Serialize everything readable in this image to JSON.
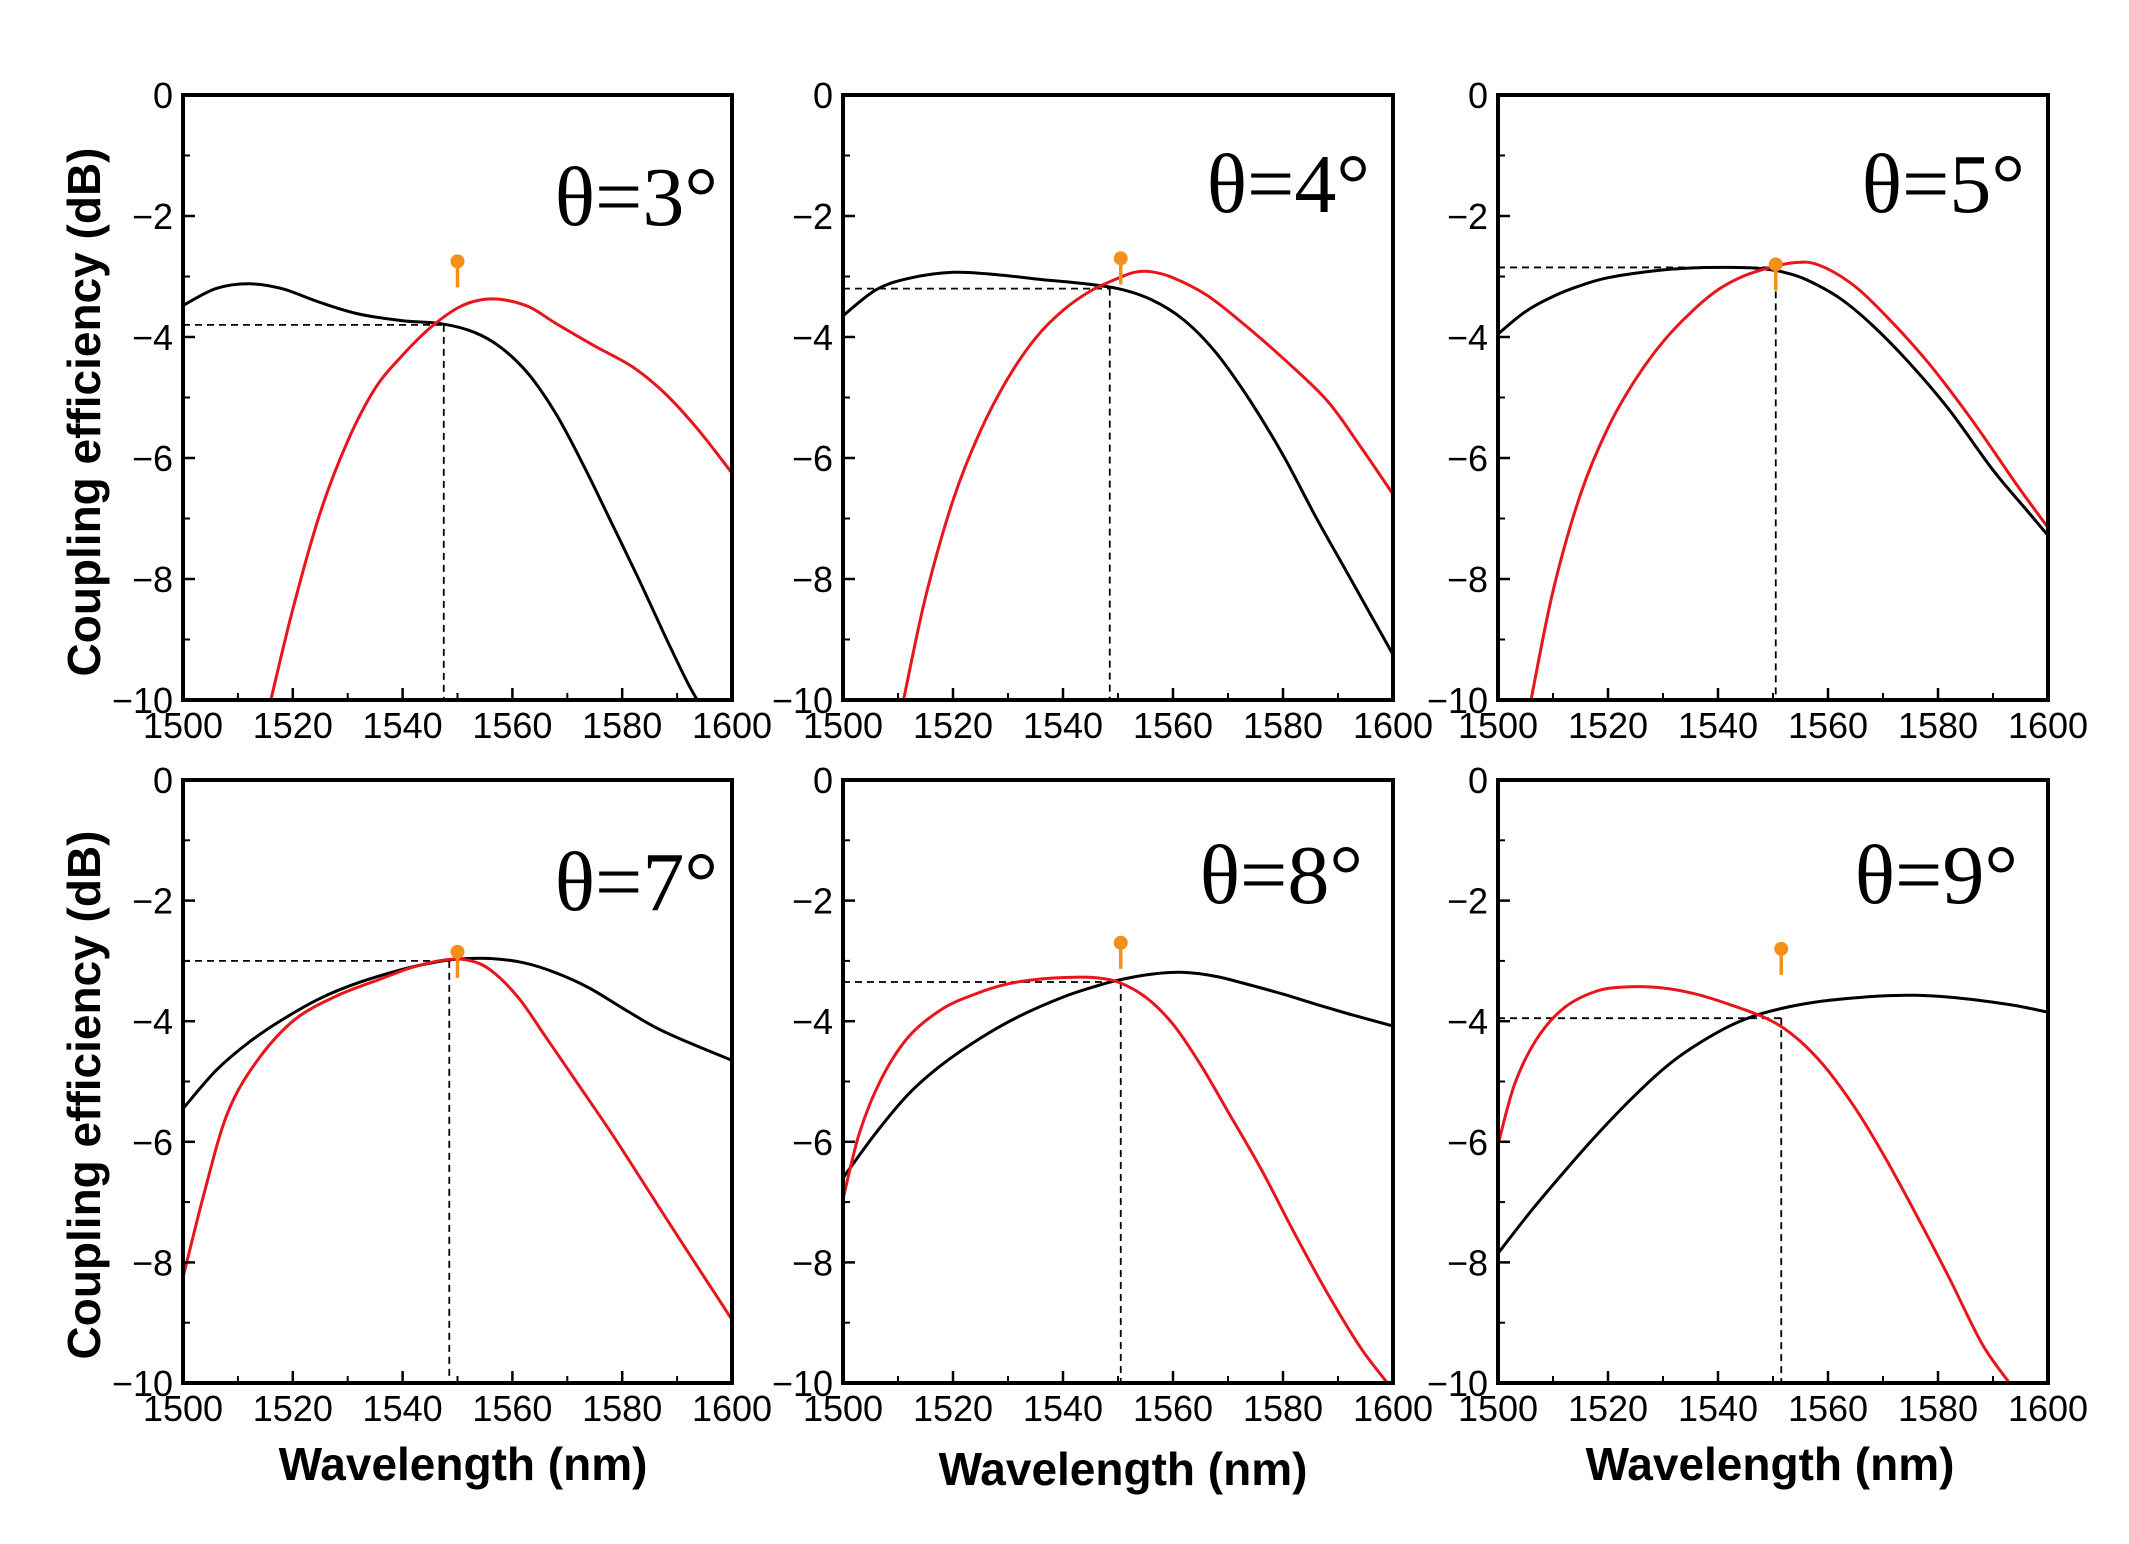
{
  "figure": {
    "ylabel_top": "Coupling efficiency (dB)",
    "ylabel_bottom": "Coupling efficiency (dB)",
    "xlabel_col1": "Wavelength (nm)",
    "xlabel_col2": "Wavelength (nm)",
    "xlabel_col3": "Wavelength (nm)"
  },
  "colors": {
    "curve_a": "#000000",
    "curve_b": "#e8151b",
    "marker": "#f39019",
    "guide": "#000000"
  },
  "chart_data": [
    {
      "type": "line",
      "label": "θ=3°",
      "xlim": [
        1500,
        1600
      ],
      "ylim": [
        -10,
        0
      ],
      "xticks": [
        1500,
        1520,
        1540,
        1560,
        1580,
        1600
      ],
      "xtick_labels": [
        "1500",
        "1520",
        "1540",
        "1560",
        "1580",
        "1600"
      ],
      "yticks": [
        0,
        -2,
        -4,
        -6,
        -8,
        -10
      ],
      "ytick_labels": [
        "0",
        "−2",
        "−4",
        "−6",
        "−8",
        "−10"
      ],
      "series": [
        {
          "name": "black",
          "x": [
            1500,
            1506,
            1512,
            1518,
            1525,
            1532,
            1540,
            1547,
            1553,
            1558,
            1563,
            1568,
            1573,
            1578,
            1583,
            1588,
            1592,
            1595
          ],
          "y": [
            -3.48,
            -3.2,
            -3.12,
            -3.2,
            -3.43,
            -3.62,
            -3.73,
            -3.78,
            -3.92,
            -4.18,
            -4.62,
            -5.28,
            -6.13,
            -7.06,
            -8.0,
            -8.98,
            -9.73,
            -10.2
          ]
        },
        {
          "name": "red",
          "x": [
            1516,
            1520,
            1525,
            1530,
            1535,
            1540,
            1545,
            1550,
            1554,
            1558,
            1563,
            1568,
            1575,
            1582,
            1588,
            1594,
            1600
          ],
          "y": [
            -10.0,
            -8.5,
            -6.9,
            -5.72,
            -4.85,
            -4.3,
            -3.85,
            -3.52,
            -3.39,
            -3.38,
            -3.5,
            -3.78,
            -4.15,
            -4.5,
            -4.95,
            -5.55,
            -6.25
          ]
        }
      ],
      "marker": {
        "x": 1550,
        "y": -2.75
      },
      "guide": {
        "x": 1547.5,
        "y": -3.8
      }
    },
    {
      "type": "line",
      "label": "θ=4°",
      "xlim": [
        1500,
        1600
      ],
      "ylim": [
        -10,
        0
      ],
      "xticks": [
        1500,
        1520,
        1540,
        1560,
        1580,
        1600
      ],
      "xtick_labels": [
        "1500",
        "1520",
        "1540",
        "1560",
        "1580",
        "1600"
      ],
      "yticks": [
        0,
        -2,
        -4,
        -6,
        -8,
        -10
      ],
      "ytick_labels": [
        "0",
        "−2",
        "−4",
        "−6",
        "−8",
        "−10"
      ],
      "series": [
        {
          "name": "black",
          "x": [
            1500,
            1506,
            1512,
            1520,
            1528,
            1536,
            1544,
            1550,
            1556,
            1562,
            1568,
            1574,
            1580,
            1586,
            1592,
            1600
          ],
          "y": [
            -3.65,
            -3.22,
            -3.03,
            -2.93,
            -2.97,
            -3.05,
            -3.12,
            -3.2,
            -3.38,
            -3.72,
            -4.28,
            -5.05,
            -5.95,
            -6.98,
            -7.95,
            -9.25
          ]
        },
        {
          "name": "red",
          "x": [
            1511,
            1515,
            1520,
            1525,
            1530,
            1535,
            1540,
            1545,
            1550,
            1553,
            1556,
            1560,
            1566,
            1572,
            1580,
            1588,
            1594,
            1600
          ],
          "y": [
            -10.0,
            -8.3,
            -6.7,
            -5.55,
            -4.68,
            -4.02,
            -3.56,
            -3.24,
            -3.03,
            -2.93,
            -2.92,
            -3.02,
            -3.3,
            -3.72,
            -4.35,
            -5.05,
            -5.8,
            -6.6
          ]
        }
      ],
      "marker": {
        "x": 1550.5,
        "y": -2.7
      },
      "guide": {
        "x": 1548.5,
        "y": -3.2
      }
    },
    {
      "type": "line",
      "label": "θ=5°",
      "xlim": [
        1500,
        1600
      ],
      "ylim": [
        -10,
        0
      ],
      "xticks": [
        1500,
        1520,
        1540,
        1560,
        1580,
        1600
      ],
      "xtick_labels": [
        "1500",
        "1520",
        "1540",
        "1560",
        "1580",
        "1600"
      ],
      "yticks": [
        0,
        -2,
        -4,
        -6,
        -8,
        -10
      ],
      "ytick_labels": [
        "0",
        "−2",
        "−4",
        "−6",
        "−8",
        "−10"
      ],
      "series": [
        {
          "name": "black",
          "x": [
            1500,
            1505,
            1510,
            1515,
            1520,
            1528,
            1535,
            1542,
            1548,
            1552,
            1556,
            1562,
            1568,
            1575,
            1582,
            1590,
            1596,
            1600
          ],
          "y": [
            -3.95,
            -3.58,
            -3.33,
            -3.15,
            -3.02,
            -2.91,
            -2.86,
            -2.85,
            -2.87,
            -2.93,
            -3.05,
            -3.35,
            -3.8,
            -4.45,
            -5.2,
            -6.2,
            -6.85,
            -7.28
          ]
        },
        {
          "name": "red",
          "x": [
            1506,
            1510,
            1515,
            1520,
            1525,
            1530,
            1535,
            1540,
            1545,
            1550,
            1554,
            1558,
            1564,
            1570,
            1578,
            1586,
            1594,
            1600
          ],
          "y": [
            -10.0,
            -8.2,
            -6.6,
            -5.5,
            -4.7,
            -4.08,
            -3.6,
            -3.22,
            -2.98,
            -2.84,
            -2.77,
            -2.8,
            -3.1,
            -3.6,
            -4.4,
            -5.35,
            -6.4,
            -7.15
          ]
        }
      ],
      "marker": {
        "x": 1550.5,
        "y": -2.8
      },
      "guide": {
        "x": 1550.5,
        "y": -2.85
      }
    },
    {
      "type": "line",
      "label": "θ=7°",
      "xlim": [
        1500,
        1600
      ],
      "ylim": [
        -10,
        0
      ],
      "xticks": [
        1500,
        1520,
        1540,
        1560,
        1580,
        1600
      ],
      "xtick_labels": [
        "1500",
        "1520",
        "1540",
        "1560",
        "1580",
        "1600"
      ],
      "yticks": [
        0,
        -2,
        -4,
        -6,
        -8,
        -10
      ],
      "ytick_labels": [
        "0",
        "−2",
        "−4",
        "−6",
        "−8",
        "−10"
      ],
      "series": [
        {
          "name": "black",
          "x": [
            1500,
            1506,
            1512,
            1518,
            1525,
            1532,
            1540,
            1546,
            1550,
            1556,
            1562,
            1568,
            1574,
            1580,
            1586,
            1592,
            1600
          ],
          "y": [
            -5.45,
            -4.82,
            -4.35,
            -3.98,
            -3.62,
            -3.36,
            -3.14,
            -3.02,
            -2.97,
            -2.96,
            -3.03,
            -3.2,
            -3.45,
            -3.78,
            -4.1,
            -4.35,
            -4.65
          ]
        },
        {
          "name": "red",
          "x": [
            1500,
            1504,
            1508,
            1513,
            1520,
            1528,
            1536,
            1542,
            1548,
            1552,
            1556,
            1561,
            1566,
            1572,
            1578,
            1584,
            1590,
            1595,
            1600
          ],
          "y": [
            -8.25,
            -6.8,
            -5.55,
            -4.72,
            -4.0,
            -3.58,
            -3.3,
            -3.1,
            -2.98,
            -2.99,
            -3.15,
            -3.6,
            -4.25,
            -5.05,
            -5.85,
            -6.7,
            -7.55,
            -8.25,
            -8.95
          ]
        }
      ],
      "marker": {
        "x": 1550,
        "y": -2.85
      },
      "guide": {
        "x": 1548.5,
        "y": -3.0
      }
    },
    {
      "type": "line",
      "label": "θ=8°",
      "xlim": [
        1500,
        1600
      ],
      "ylim": [
        -10,
        0
      ],
      "xticks": [
        1500,
        1520,
        1540,
        1560,
        1580,
        1600
      ],
      "xtick_labels": [
        "1500",
        "1520",
        "1540",
        "1560",
        "1580",
        "1600"
      ],
      "yticks": [
        0,
        -2,
        -4,
        -6,
        -8,
        -10
      ],
      "ytick_labels": [
        "0",
        "−2",
        "−4",
        "−6",
        "−8",
        "−10"
      ],
      "series": [
        {
          "name": "black",
          "x": [
            1500,
            1506,
            1512,
            1518,
            1525,
            1532,
            1540,
            1546,
            1550,
            1556,
            1562,
            1568,
            1574,
            1580,
            1586,
            1592,
            1600
          ],
          "y": [
            -6.6,
            -5.85,
            -5.2,
            -4.72,
            -4.28,
            -3.92,
            -3.6,
            -3.42,
            -3.32,
            -3.22,
            -3.19,
            -3.26,
            -3.4,
            -3.55,
            -3.72,
            -3.88,
            -4.08
          ]
        },
        {
          "name": "red",
          "x": [
            1500,
            1503,
            1507,
            1512,
            1518,
            1524,
            1530,
            1536,
            1542,
            1546,
            1550,
            1555,
            1560,
            1565,
            1570,
            1576,
            1582,
            1588,
            1594,
            1599
          ],
          "y": [
            -6.95,
            -5.85,
            -4.95,
            -4.25,
            -3.8,
            -3.55,
            -3.38,
            -3.3,
            -3.27,
            -3.28,
            -3.35,
            -3.6,
            -4.05,
            -4.72,
            -5.5,
            -6.45,
            -7.5,
            -8.5,
            -9.4,
            -10.0
          ]
        }
      ],
      "marker": {
        "x": 1550.5,
        "y": -2.7
      },
      "guide": {
        "x": 1550.5,
        "y": -3.35
      }
    },
    {
      "type": "line",
      "label": "θ=9°",
      "xlim": [
        1500,
        1600
      ],
      "ylim": [
        -10,
        0
      ],
      "xticks": [
        1500,
        1520,
        1540,
        1560,
        1580,
        1600
      ],
      "xtick_labels": [
        "1500",
        "1520",
        "1540",
        "1560",
        "1580",
        "1600"
      ],
      "yticks": [
        0,
        -2,
        -4,
        -6,
        -8,
        -10
      ],
      "ytick_labels": [
        "0",
        "−2",
        "−4",
        "−6",
        "−8",
        "−10"
      ],
      "series": [
        {
          "name": "black",
          "x": [
            1500,
            1506,
            1512,
            1518,
            1525,
            1532,
            1540,
            1546,
            1552,
            1558,
            1564,
            1570,
            1576,
            1582,
            1588,
            1594,
            1600
          ],
          "y": [
            -7.85,
            -7.15,
            -6.5,
            -5.88,
            -5.22,
            -4.65,
            -4.18,
            -3.93,
            -3.78,
            -3.68,
            -3.62,
            -3.58,
            -3.57,
            -3.6,
            -3.66,
            -3.74,
            -3.85
          ]
        },
        {
          "name": "red",
          "x": [
            1500,
            1503,
            1507,
            1512,
            1518,
            1524,
            1530,
            1536,
            1542,
            1548,
            1552,
            1556,
            1560,
            1565,
            1570,
            1576,
            1582,
            1588,
            1593
          ],
          "y": [
            -6.05,
            -5.05,
            -4.3,
            -3.78,
            -3.5,
            -3.43,
            -3.45,
            -3.55,
            -3.72,
            -3.92,
            -4.12,
            -4.42,
            -4.82,
            -5.45,
            -6.2,
            -7.2,
            -8.25,
            -9.35,
            -10.0
          ]
        }
      ],
      "marker": {
        "x": 1551.5,
        "y": -2.8
      },
      "guide": {
        "x": 1551.5,
        "y": -3.95
      }
    }
  ]
}
